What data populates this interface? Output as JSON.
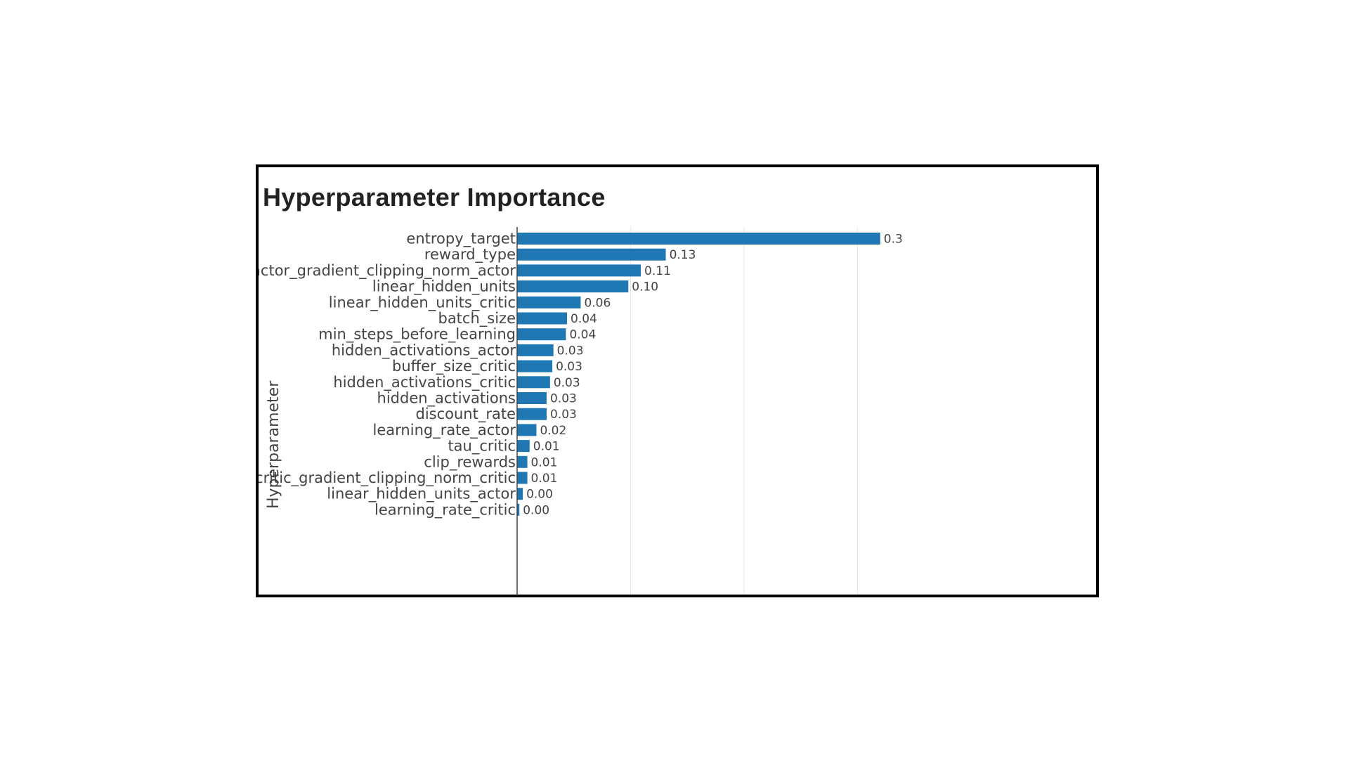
{
  "chart_data": {
    "type": "bar",
    "orientation": "horizontal",
    "title": "Hyperparameter Importance",
    "ylabel": "Hyperparameter",
    "xlabel": "",
    "xlim": [
      0,
      0.4
    ],
    "grid": true,
    "bar_color": "#1f77b4",
    "categories": [
      "entropy_target",
      "reward_type",
      "actor_gradient_clipping_norm_actor",
      "linear_hidden_units",
      "linear_hidden_units_critic",
      "batch_size",
      "min_steps_before_learning",
      "hidden_activations_actor",
      "buffer_size_critic",
      "hidden_activations_critic",
      "hidden_activations",
      "discount_rate",
      "learning_rate_actor",
      "tau_critic",
      "clip_rewards",
      "critic_gradient_clipping_norm_critic",
      "linear_hidden_units_actor",
      "learning_rate_critic"
    ],
    "values": [
      0.32,
      0.131,
      0.109,
      0.098,
      0.056,
      0.044,
      0.043,
      0.032,
      0.031,
      0.029,
      0.026,
      0.026,
      0.017,
      0.011,
      0.009,
      0.009,
      0.005,
      0.002
    ],
    "value_labels": [
      "0.3",
      "0.13",
      "0.11",
      "0.10",
      "0.06",
      "0.04",
      "0.04",
      "0.03",
      "0.03",
      "0.03",
      "0.03",
      "0.03",
      "0.02",
      "0.01",
      "0.01",
      "0.01",
      "0.00",
      "0.00"
    ]
  }
}
